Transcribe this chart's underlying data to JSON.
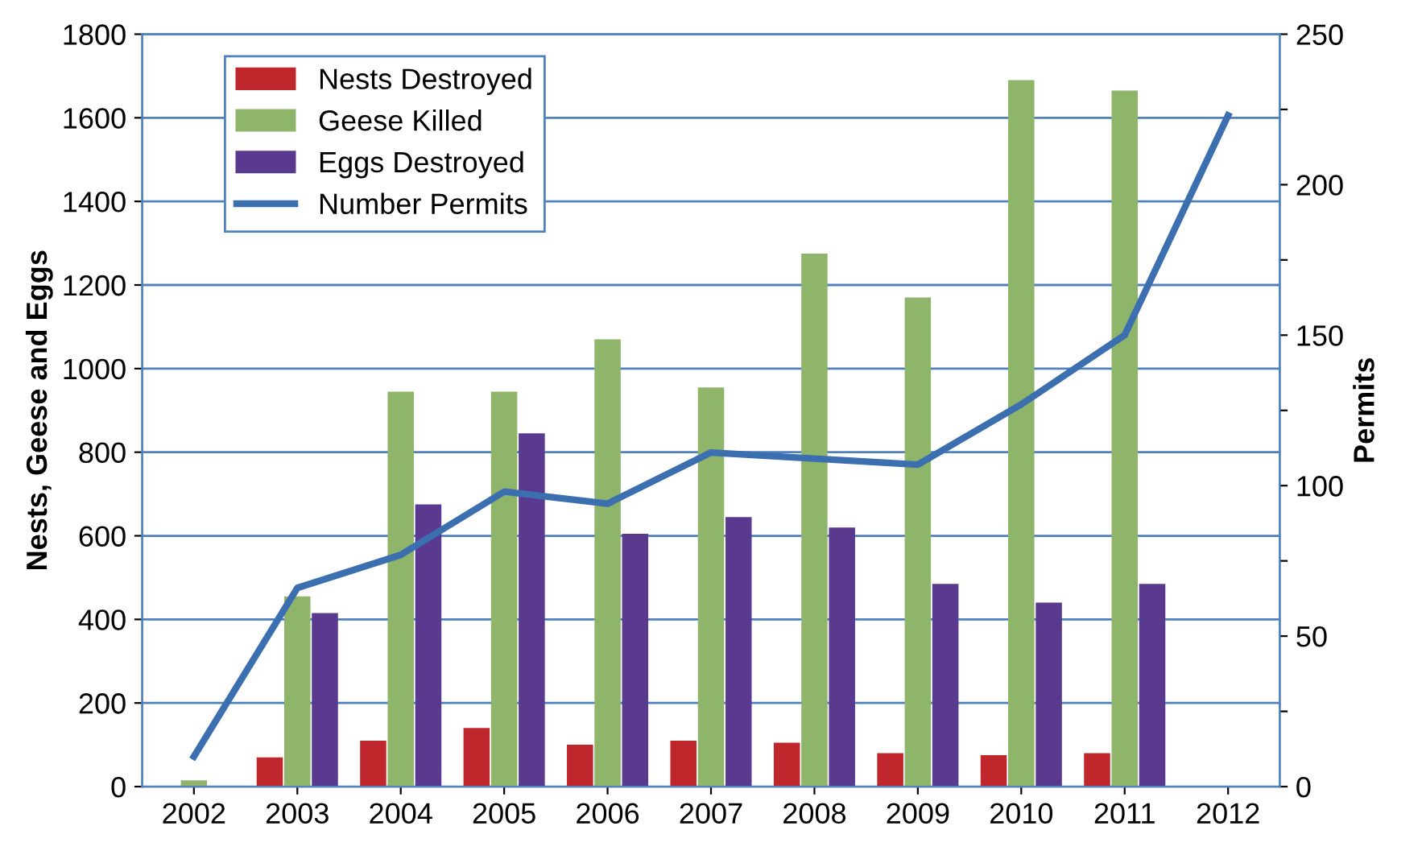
{
  "chart_data": {
    "type": "bar",
    "ylabel": "Nests, Geese and Eggs",
    "y2label": "Permits",
    "categories": [
      "2002",
      "2003",
      "2004",
      "2005",
      "2006",
      "2007",
      "2008",
      "2009",
      "2010",
      "2011",
      "2012"
    ],
    "series": [
      {
        "name": "Nests Destroyed",
        "color": "#c0272d",
        "values": [
          null,
          70,
          110,
          140,
          100,
          110,
          105,
          80,
          75,
          80,
          null
        ]
      },
      {
        "name": "Geese Killed",
        "color": "#8fb56a",
        "values": [
          15,
          455,
          945,
          945,
          1070,
          955,
          1275,
          1170,
          1690,
          1665,
          null
        ]
      },
      {
        "name": "Eggs Destroyed",
        "color": "#5a3a8f",
        "values": [
          null,
          415,
          675,
          845,
          605,
          645,
          620,
          485,
          440,
          485,
          null
        ]
      },
      {
        "name": "Number Permits",
        "type": "line",
        "axis": "y2",
        "color": "#3c6fb0",
        "values": [
          10,
          66,
          77,
          98,
          94,
          111,
          109,
          107,
          127,
          150,
          223
        ]
      }
    ],
    "ylim": [
      0,
      1800
    ],
    "yticks": [
      0,
      200,
      400,
      600,
      800,
      1000,
      1200,
      1400,
      1600,
      1800
    ],
    "y2lim": [
      0,
      250
    ],
    "y2ticks": [
      0,
      {
        "value": 25,
        "label": null
      },
      50,
      {
        "value": 75,
        "label": null
      },
      100,
      {
        "value": 125,
        "label": null
      },
      150,
      {
        "value": 175,
        "label": null
      },
      200,
      {
        "value": 225,
        "label": null
      },
      250
    ],
    "grid": "y",
    "legend": "top left",
    "marker": "none"
  }
}
